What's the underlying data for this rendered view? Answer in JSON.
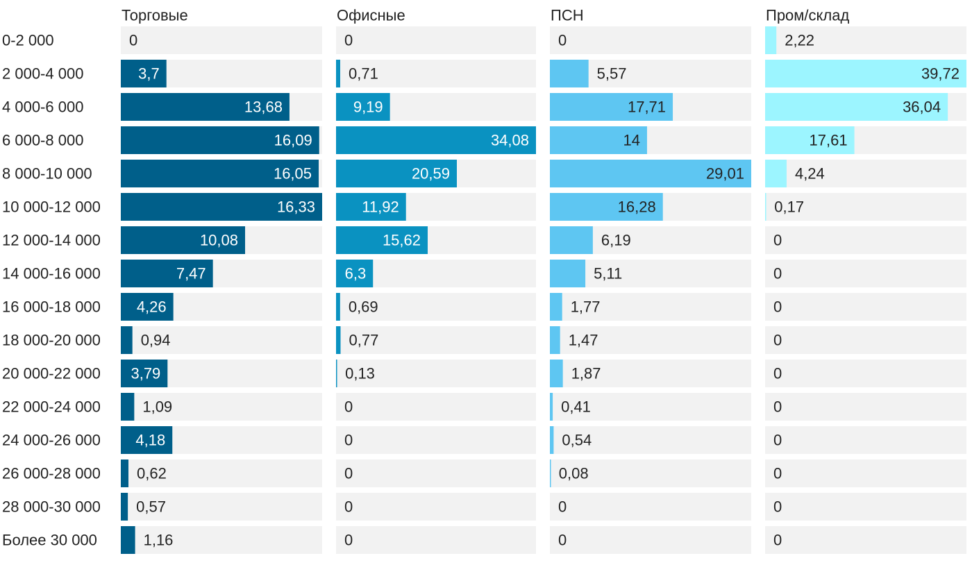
{
  "chart_data": {
    "type": "bar",
    "orientation": "horizontal",
    "layout": "small-multiples",
    "categories": [
      "0-2 000",
      "2 000-4 000",
      "4 000-6 000",
      "6 000-8 000",
      "8 000-10 000",
      "10 000-12 000",
      "12 000-14 000",
      "14 000-16 000",
      "16 000-18 000",
      "18 000-20 000",
      "20 000-22 000",
      "22 000-24 000",
      "24 000-26 000",
      "26 000-28 000",
      "28 000-30 000",
      "Более 30 000"
    ],
    "series": [
      {
        "name": "Торговые",
        "color": "#005f8a",
        "label_color_inside": "#ffffff",
        "values": [
          "0",
          "3,7",
          "13,68",
          "16,09",
          "16,05",
          "16,33",
          "10,08",
          "7,47",
          "4,26",
          "0,94",
          "3,79",
          "1,09",
          "4,18",
          "0,62",
          "0,57",
          "1,16"
        ]
      },
      {
        "name": "Офисные",
        "color": "#0a92c1",
        "label_color_inside": "#ffffff",
        "values": [
          "0",
          "0,71",
          "9,19",
          "34,08",
          "20,59",
          "11,92",
          "15,62",
          "6,3",
          "0,69",
          "0,77",
          "0,13",
          "0",
          "0",
          "0",
          "0",
          "0"
        ]
      },
      {
        "name": "ПСН",
        "color": "#5ec6f2",
        "label_color_inside": "#222222",
        "values": [
          "0",
          "5,57",
          "17,71",
          "14",
          "29,01",
          "16,28",
          "6,19",
          "5,11",
          "1,77",
          "1,47",
          "1,87",
          "0,41",
          "0,54",
          "0,08",
          "0",
          "0"
        ]
      },
      {
        "name": "Пром/склад",
        "color": "#9cf5ff",
        "label_color_inside": "#222222",
        "values": [
          "2,22",
          "39,72",
          "36,04",
          "17,61",
          "4,24",
          "0,17",
          "0",
          "0",
          "0",
          "0",
          "0",
          "0",
          "0",
          "0",
          "0",
          "0"
        ]
      }
    ],
    "background_bar_color": "#f2f2f2",
    "grid": false,
    "legend": "none"
  }
}
